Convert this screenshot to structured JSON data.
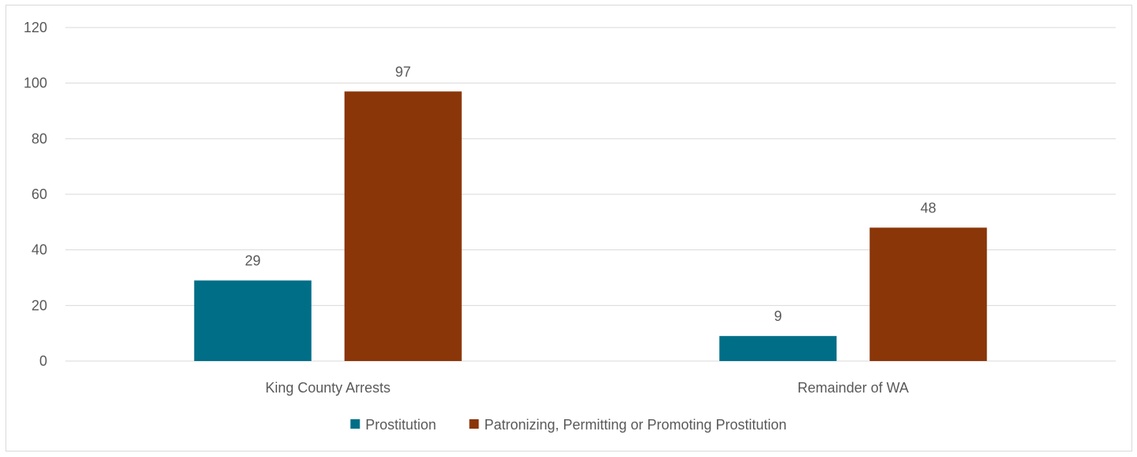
{
  "chart_data": {
    "type": "bar",
    "categories": [
      "King County Arrests",
      "Remainder of WA"
    ],
    "series": [
      {
        "name": "Prostitution",
        "values": [
          29,
          9
        ],
        "color": "#006e87"
      },
      {
        "name": "Patronizing, Permitting or Promoting Prostitution",
        "values": [
          97,
          48
        ],
        "color": "#8a3609"
      }
    ],
    "ylim": [
      0,
      120
    ],
    "yticks": [
      0,
      20,
      40,
      60,
      80,
      100,
      120
    ],
    "grid": true,
    "legend": "bottom"
  }
}
